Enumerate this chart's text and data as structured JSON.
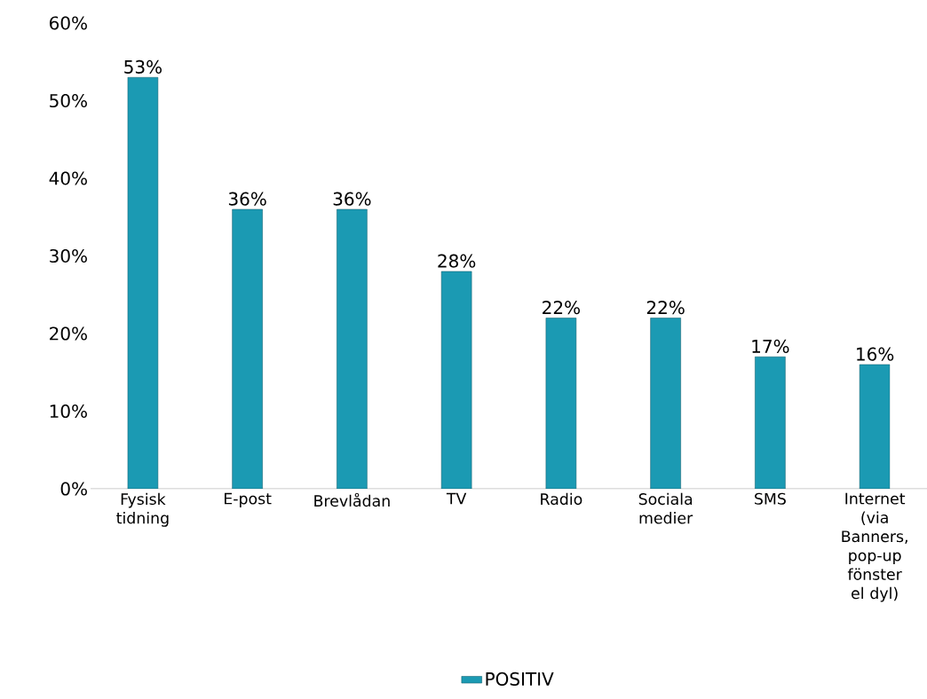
{
  "chart_data": {
    "type": "bar",
    "categories": [
      "Fysisk tidning",
      "E-post",
      "Brevlådan",
      "TV",
      "Radio",
      "Sociala medier",
      "SMS",
      "Internet (via Banners, pop-up fönster el dyl)"
    ],
    "series": [
      {
        "name": "POSITIV",
        "color": "#1b9ab3",
        "values": [
          53,
          36,
          36,
          28,
          22,
          22,
          17,
          16
        ],
        "value_labels": [
          "53%",
          "36%",
          "36%",
          "28%",
          "22%",
          "22%",
          "17%",
          "16%"
        ]
      }
    ],
    "ylim": [
      0,
      60
    ],
    "yticks": [
      {
        "value": 0,
        "label": "0%"
      },
      {
        "value": 10,
        "label": "10%"
      },
      {
        "value": 20,
        "label": "20%"
      },
      {
        "value": 30,
        "label": "30%"
      },
      {
        "value": 40,
        "label": "40%"
      },
      {
        "value": 50,
        "label": "50%"
      },
      {
        "value": 60,
        "label": "60%"
      }
    ],
    "legend": "bottom"
  }
}
